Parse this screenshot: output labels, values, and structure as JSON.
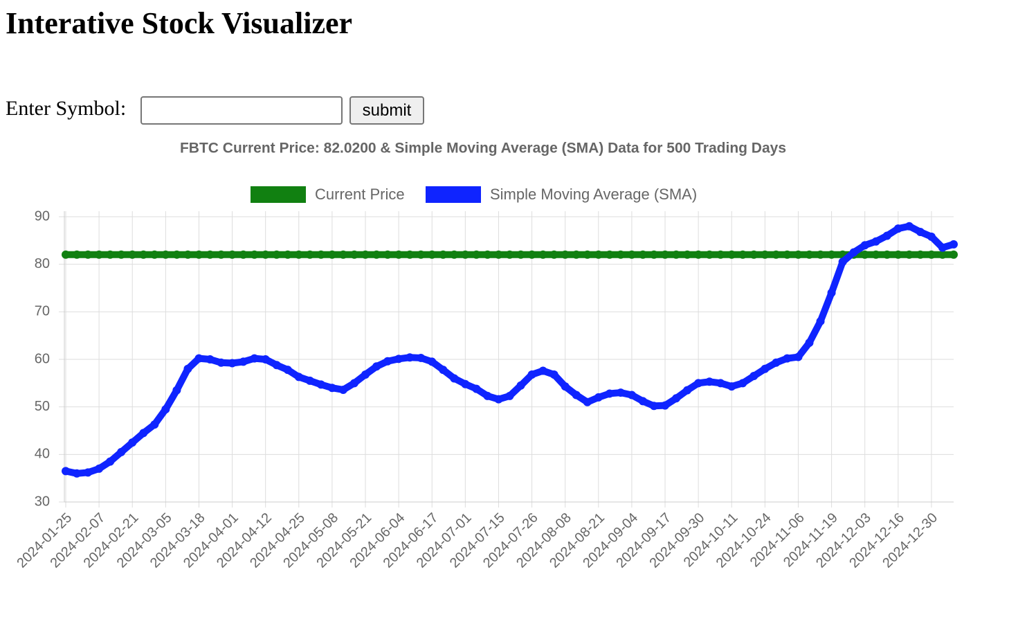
{
  "header": {
    "title": "Interative Stock Visualizer"
  },
  "form": {
    "label": "Enter Symbol:",
    "button": "submit"
  },
  "chart_data": {
    "type": "line",
    "title": "FBTC Current Price: 82.0200 & Simple Moving Average (SMA) Data for 500 Trading Days",
    "categories": [
      "2024-01-25",
      null,
      null,
      "2024-02-07",
      null,
      null,
      "2024-02-21",
      null,
      null,
      "2024-03-05",
      null,
      null,
      "2024-03-18",
      null,
      null,
      "2024-04-01",
      null,
      null,
      "2024-04-12",
      null,
      null,
      "2024-04-25",
      null,
      null,
      "2024-05-08",
      null,
      null,
      "2024-05-21",
      null,
      null,
      "2024-06-04",
      null,
      null,
      "2024-06-17",
      null,
      null,
      "2024-07-01",
      null,
      null,
      "2024-07-15",
      null,
      null,
      "2024-07-26",
      null,
      null,
      "2024-08-08",
      null,
      null,
      "2024-08-21",
      null,
      null,
      "2024-09-04",
      null,
      null,
      "2024-09-17",
      null,
      null,
      "2024-09-30",
      null,
      null,
      "2024-10-11",
      null,
      null,
      "2024-10-24",
      null,
      null,
      "2024-11-06",
      null,
      null,
      "2024-11-19",
      null,
      null,
      "2024-12-03",
      null,
      null,
      "2024-12-16",
      null,
      null,
      "2024-12-30",
      null,
      null
    ],
    "series": [
      {
        "name": "Current Price",
        "color": "#118011",
        "values": [
          82.02,
          82.02,
          82.02,
          82.02,
          82.02,
          82.02,
          82.02,
          82.02,
          82.02,
          82.02,
          82.02,
          82.02,
          82.02,
          82.02,
          82.02,
          82.02,
          82.02,
          82.02,
          82.02,
          82.02,
          82.02,
          82.02,
          82.02,
          82.02,
          82.02,
          82.02,
          82.02,
          82.02,
          82.02,
          82.02,
          82.02,
          82.02,
          82.02,
          82.02,
          82.02,
          82.02,
          82.02,
          82.02,
          82.02,
          82.02,
          82.02,
          82.02,
          82.02,
          82.02,
          82.02,
          82.02,
          82.02,
          82.02,
          82.02,
          82.02,
          82.02,
          82.02,
          82.02,
          82.02,
          82.02,
          82.02,
          82.02,
          82.02,
          82.02,
          82.02,
          82.02,
          82.02,
          82.02,
          82.02,
          82.02,
          82.02,
          82.02,
          82.02,
          82.02,
          82.02,
          82.02,
          82.02,
          82.02,
          82.02,
          82.02,
          82.02,
          82.02,
          82.02,
          82.02,
          82.02,
          82.02
        ]
      },
      {
        "name": "Simple Moving Average (SMA)",
        "color": "#0f24ff",
        "values": [
          36.5,
          36.0,
          36.2,
          37.0,
          38.5,
          40.5,
          42.5,
          44.5,
          46.3,
          49.5,
          53.5,
          58.0,
          60.2,
          60.0,
          59.3,
          59.2,
          59.5,
          60.2,
          60.0,
          58.8,
          57.8,
          56.3,
          55.5,
          54.7,
          54.0,
          53.6,
          55.0,
          56.8,
          58.5,
          59.6,
          60.1,
          60.4,
          60.3,
          59.5,
          57.8,
          56.0,
          54.8,
          53.8,
          52.3,
          51.6,
          52.3,
          54.5,
          56.8,
          57.6,
          56.8,
          54.3,
          52.5,
          51.0,
          52.0,
          52.8,
          53.0,
          52.5,
          51.2,
          50.2,
          50.3,
          51.8,
          53.5,
          55.0,
          55.3,
          55.0,
          54.3,
          55.0,
          56.5,
          58.0,
          59.3,
          60.2,
          60.5,
          63.5,
          68.0,
          74.0,
          80.5,
          82.5,
          84.0,
          84.8,
          86.0,
          87.5,
          88.0,
          86.8,
          85.8,
          83.5,
          84.2
        ]
      }
    ],
    "ylim": [
      30,
      90
    ],
    "yticks": [
      30,
      40,
      50,
      60,
      70,
      80,
      90
    ],
    "grid": true,
    "legend": "top"
  }
}
